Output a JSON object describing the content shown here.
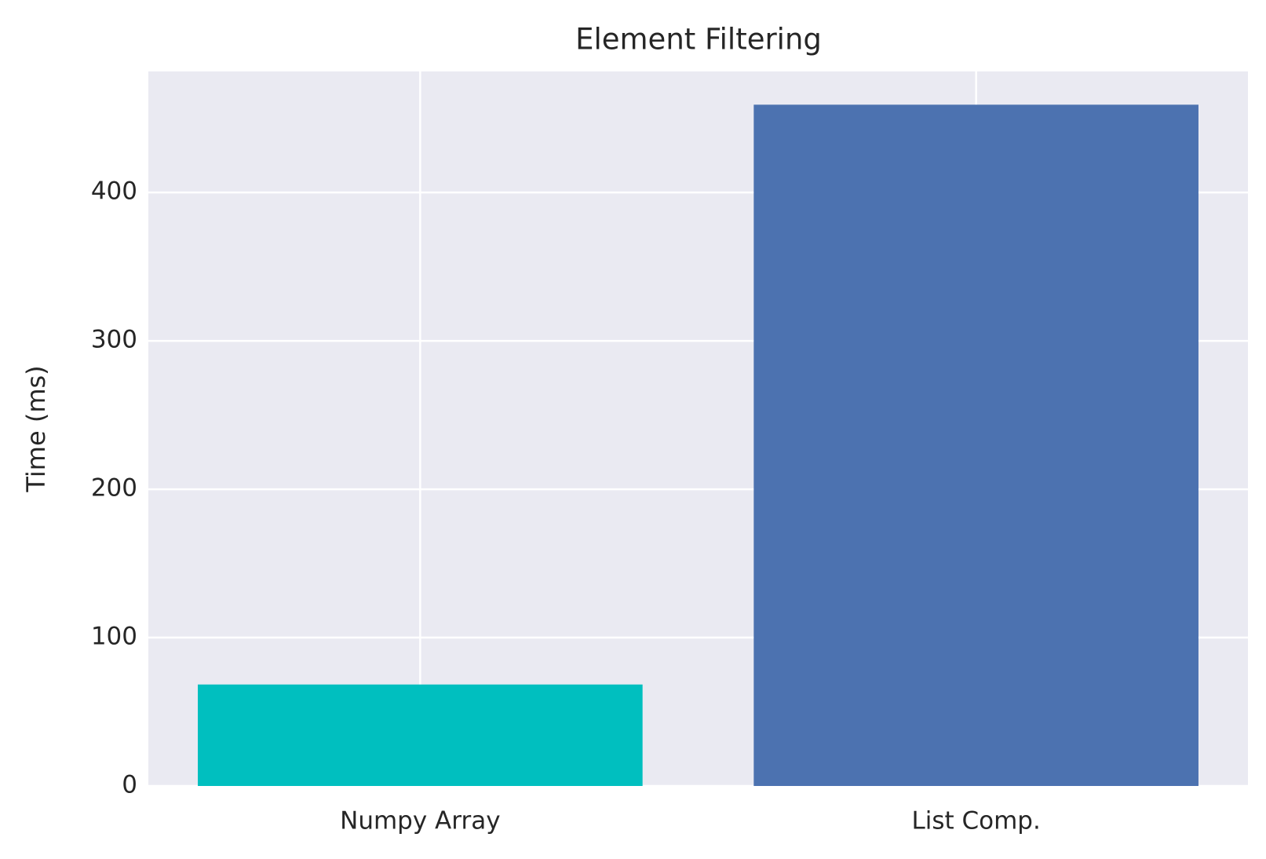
{
  "chart_data": {
    "type": "bar",
    "title": "Element Filtering",
    "y_label": "Time (ms)",
    "categories": [
      "Numpy Array",
      "List Comp."
    ],
    "values": [
      68.4,
      459.2
    ],
    "colors": [
      "#00bfbf",
      "#4c72b0"
    ],
    "ylim": [
      0,
      481.6
    ],
    "yticks": [
      0,
      100,
      200,
      300,
      400
    ],
    "grid": true
  }
}
